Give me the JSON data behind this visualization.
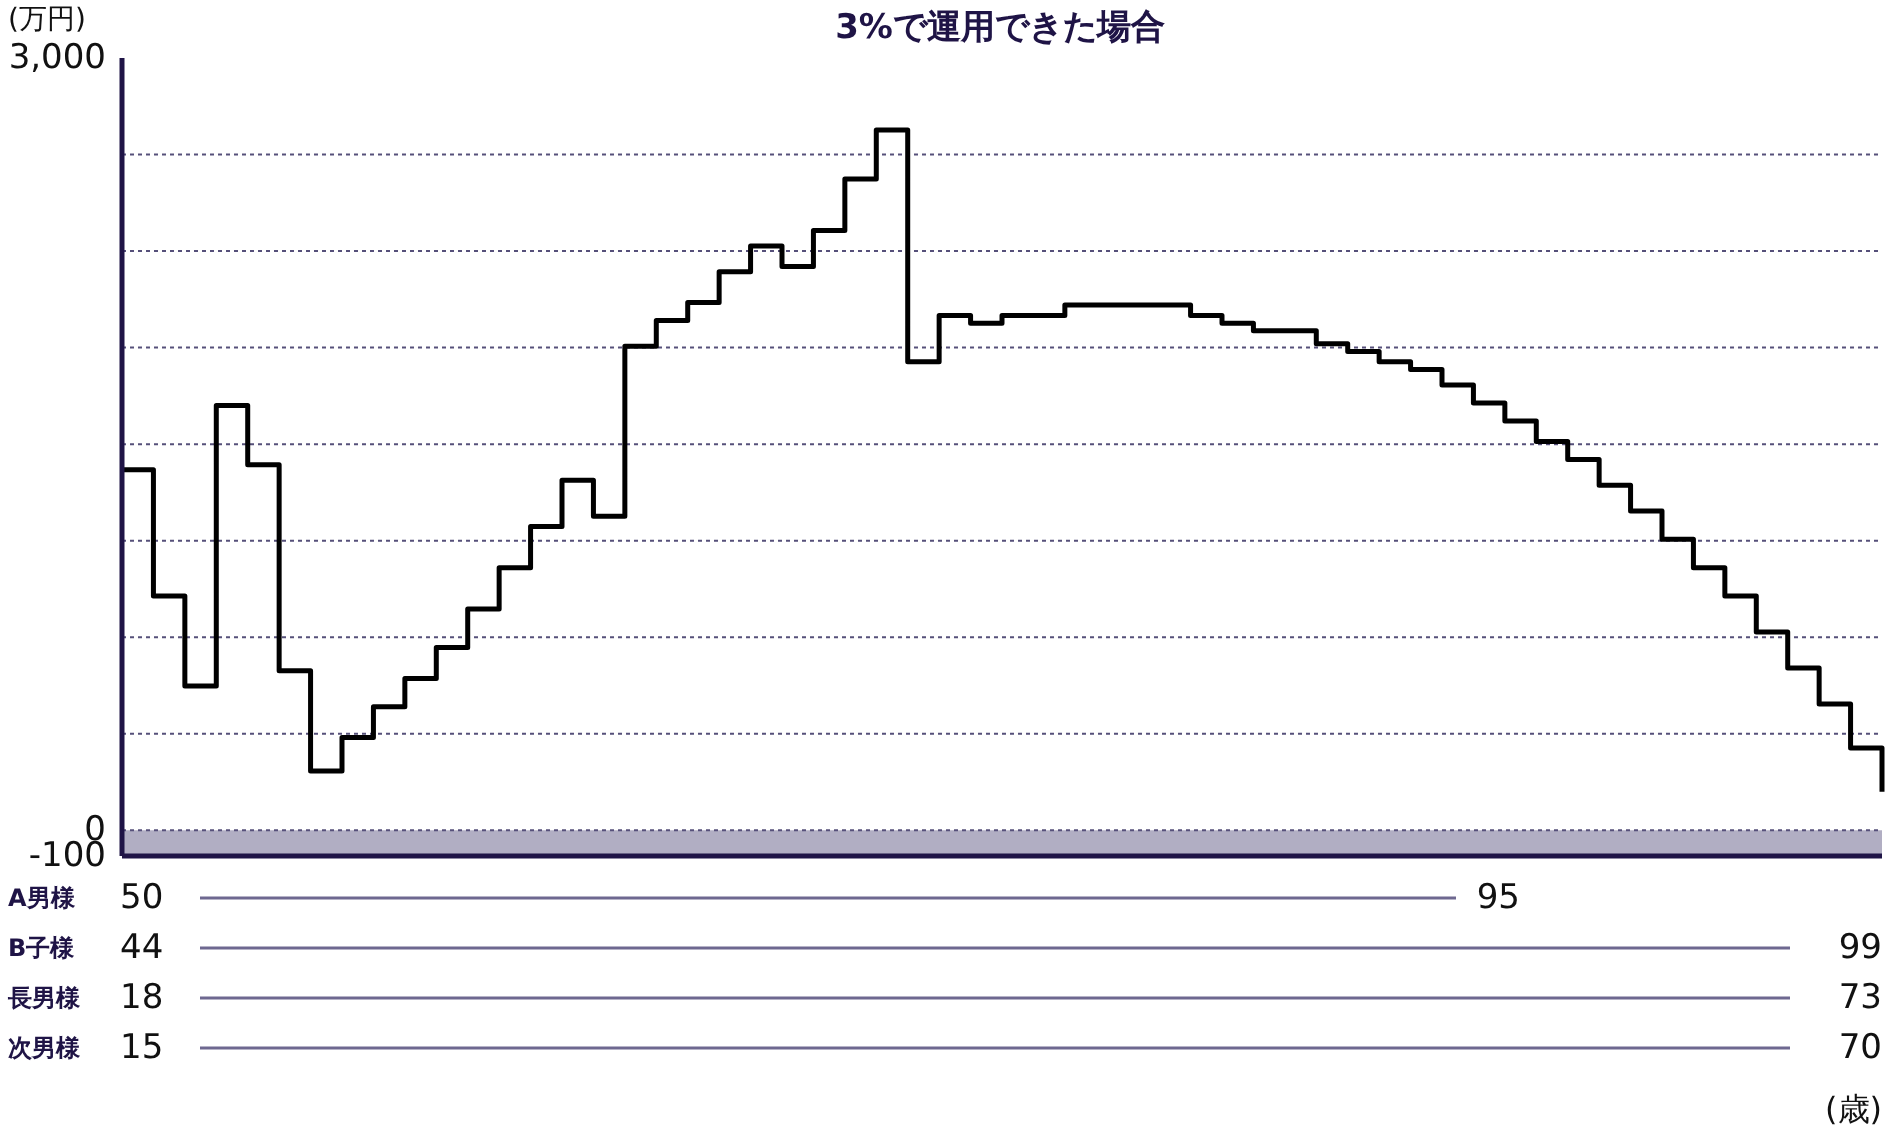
{
  "chart_data": {
    "type": "step",
    "title": "3%で運用できた場合",
    "ylabel": "(万円)",
    "categories": [
      null,
      null,
      null,
      null,
      null,
      null,
      null,
      null,
      null,
      null,
      null,
      null,
      null,
      null,
      null,
      null,
      null,
      null,
      null,
      null,
      null,
      null,
      null,
      null,
      null,
      null,
      null,
      null,
      null,
      null,
      null,
      null,
      null,
      null,
      null,
      null,
      null,
      null,
      null,
      null,
      null,
      null,
      null,
      null,
      null,
      null,
      null,
      null,
      null,
      null,
      null,
      null,
      null,
      null,
      null,
      null,
      null
    ],
    "series": [
      {
        "color": "#000000",
        "values": [
          1400,
          910,
          560,
          1650,
          1420,
          620,
          230,
          360,
          480,
          590,
          710,
          860,
          1020,
          1180,
          1360,
          1220,
          1880,
          1980,
          2050,
          2170,
          2270,
          2190,
          2330,
          2530,
          2720,
          1820,
          2000,
          1970,
          2000,
          2000,
          2040,
          2040,
          2040,
          2040,
          2000,
          1970,
          1940,
          1940,
          1890,
          1860,
          1820,
          1790,
          1730,
          1660,
          1590,
          1510,
          1440,
          1340,
          1240,
          1130,
          1020,
          910,
          770,
          630,
          490,
          320,
          150
        ]
      }
    ],
    "ylim": [
      -100,
      3000
    ],
    "yticks": [
      {
        "value": -100,
        "label": "-100"
      },
      0,
      {
        "value": 375,
        "label": null
      },
      {
        "value": 750,
        "label": null
      },
      {
        "value": 1125,
        "label": null
      },
      {
        "value": 1500,
        "label": null
      },
      {
        "value": 1875,
        "label": null
      },
      {
        "value": 2250,
        "label": null
      },
      {
        "value": 2625,
        "label": null
      },
      {
        "value": 3000,
        "label": "3,000"
      }
    ],
    "grid": "y",
    "line_style": "solid",
    "marker": "none",
    "bands": [
      {
        "axis": "y",
        "from": -100,
        "to": 0,
        "color": "#b1aec3"
      }
    ],
    "annotations": [
      "A男様",
      "50",
      "95",
      "B子様",
      "44",
      "99",
      "長男様",
      "18",
      "73",
      "次男様",
      "15",
      "70",
      "(歳)"
    ]
  }
}
